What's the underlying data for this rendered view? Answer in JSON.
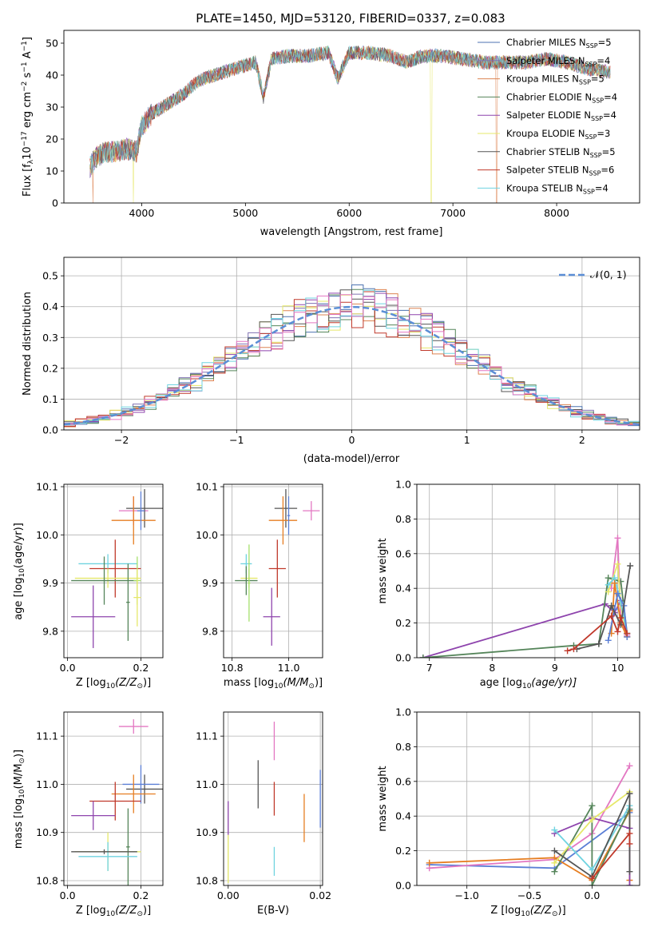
{
  "figure_title": "PLATE=1450, MJD=53120, FIBERID=0337, z=0.083",
  "colors": {
    "Chabrier MILES": "#4c72b0",
    "Salpeter MILES": "#8172b2",
    "Kroupa MILES": "#dd8452",
    "Chabrier ELODIE": "#55855a",
    "Salpeter ELODIE": "#8e44ad",
    "Kroupa ELODIE": "#e6e86a",
    "Chabrier STELIB": "#555555",
    "Salpeter STELIB": "#c0392b",
    "Kroupa STELIB": "#6fd3e0",
    "pink": "#e377c2",
    "orange": "#e67e22",
    "blue": "#5b7fd6",
    "normal_curve": "#5b8ed6"
  },
  "chart_data": [
    {
      "id": "spectrum",
      "type": "line",
      "xlabel": "wavelength [Angstrom, rest frame]",
      "ylabel": "Flux [f",
      "ylabel_sub": "λ",
      "ylabel_rest": "10",
      "ylabel_sup1": "−17",
      "ylabel_tail": " erg cm",
      "ylabel_sup2": "−2",
      "ylabel_tail2": " s",
      "ylabel_sup3": "−1",
      "ylabel_tail3": " A",
      "ylabel_sup4": "−1",
      "ylabel_end": "]",
      "xlim": [
        3250,
        8800
      ],
      "ylim": [
        0,
        54
      ],
      "xticks": [
        "4000",
        "5000",
        "6000",
        "7000",
        "8000"
      ],
      "xtick_values": [
        4000,
        5000,
        6000,
        7000,
        8000
      ],
      "yticks": [
        "0",
        "10",
        "20",
        "30",
        "40",
        "50"
      ],
      "ytick_values": [
        0,
        10,
        20,
        30,
        40,
        50
      ],
      "legend_position": "top-right",
      "legend": [
        {
          "name": "Chabrier MILES",
          "nssp": "5",
          "color": "#4c72b0"
        },
        {
          "name": "Salpeter MILES",
          "nssp": "4",
          "color": "#8172b2"
        },
        {
          "name": "Kroupa MILES",
          "nssp": "5",
          "color": "#dd8452"
        },
        {
          "name": "Chabrier ELODIE",
          "nssp": "4",
          "color": "#55855a"
        },
        {
          "name": "Salpeter ELODIE",
          "nssp": "4",
          "color": "#8e44ad"
        },
        {
          "name": "Kroupa ELODIE",
          "nssp": "3",
          "color": "#e6e86a"
        },
        {
          "name": "Chabrier STELIB",
          "nssp": "5",
          "color": "#555555"
        },
        {
          "name": "Salpeter STELIB",
          "nssp": "6",
          "color": "#c0392b"
        },
        {
          "name": "Kroupa STELIB",
          "nssp": "4",
          "color": "#6fd3e0"
        }
      ],
      "legend_prefix": "N",
      "legend_sub": "SSP",
      "spectrum_knots": {
        "x": [
          3500,
          3550,
          3650,
          3750,
          3850,
          3950,
          4000,
          4100,
          4200,
          4300,
          4400,
          4500,
          4600,
          4700,
          4800,
          4900,
          5000,
          5100,
          5175,
          5250,
          5400,
          5600,
          5800,
          5890,
          6000,
          6200,
          6400,
          6560,
          6700,
          6900,
          7100,
          7300,
          7500,
          7700,
          7900,
          8100,
          8300,
          8500
        ],
        "y": [
          11,
          14,
          16,
          16,
          17,
          16,
          24,
          28,
          30,
          32,
          34,
          37,
          39,
          40,
          41,
          42,
          43,
          44,
          33,
          45,
          46,
          46,
          47,
          39,
          47,
          47,
          46,
          44,
          46,
          46,
          45,
          44,
          44,
          44,
          45,
          44,
          42,
          41
        ]
      },
      "drops": [
        {
          "series": "Kroupa ELODIE",
          "x": 3920
        },
        {
          "series": "Kroupa ELODIE",
          "x": 6790
        },
        {
          "series": "Kroupa MILES",
          "x": 3530
        },
        {
          "series": "Kroupa MILES",
          "x": 7420
        }
      ]
    },
    {
      "id": "residual-hist",
      "type": "line",
      "xlabel": "(data-model)/error",
      "ylabel": "Normed distribution",
      "xlim": [
        -2.5,
        2.5
      ],
      "ylim": [
        0,
        0.56
      ],
      "xticks": [
        "−2",
        "−1",
        "0",
        "1",
        "2"
      ],
      "xtick_values": [
        -2,
        -1,
        0,
        1,
        2
      ],
      "yticks": [
        "0.0",
        "0.1",
        "0.2",
        "0.3",
        "0.4",
        "0.5"
      ],
      "ytick_values": [
        0,
        0.1,
        0.2,
        0.3,
        0.4,
        0.5
      ],
      "grid": true,
      "legend_position": "top-right",
      "legend_label": "𝒩(0, 1)",
      "bin_width": 0.1
    },
    {
      "id": "age-vs-Z",
      "type": "scatter",
      "xlabel": "Z [log",
      "xlabel_sub": "10",
      "xlabel_rest": "(Z/Z",
      "xlabel_sub2": "⊙",
      "xlabel_end": ")]",
      "ylabel": "age  [log",
      "ylabel_sub": "10",
      "ylabel_rest": "(age/yr)]",
      "xlim": [
        -0.01,
        0.26
      ],
      "ylim": [
        9.745,
        10.105
      ],
      "xticks": [
        "0.0",
        "0.2"
      ],
      "xtick_values": [
        0.0,
        0.2
      ],
      "yticks": [
        "9.8",
        "9.9",
        "10.0",
        "10.1"
      ],
      "ytick_values": [
        9.8,
        9.9,
        10.0,
        10.1
      ],
      "grid": true,
      "crosses": [
        {
          "color": "#e377c2",
          "x": 0.18,
          "xerr": 0.04,
          "y": 10.05,
          "yerr": 0.03
        },
        {
          "color": "#555555",
          "x": 0.21,
          "xerr": 0.05,
          "y": 10.055,
          "yerr": 0.04
        },
        {
          "color": "#e67e22",
          "x": 0.18,
          "xerr": 0.06,
          "y": 10.03,
          "yerr": 0.05
        },
        {
          "color": "#5b7fd6",
          "x": 0.2,
          "xerr": 0.01,
          "y": 10.05,
          "yerr": 0.04
        },
        {
          "color": "#6fd3e0",
          "x": 0.11,
          "xerr": 0.08,
          "y": 9.94,
          "yerr": 0.02
        },
        {
          "color": "#c0392b",
          "x": 0.13,
          "xerr": 0.07,
          "y": 9.93,
          "yerr": 0.06
        },
        {
          "color": "#e6e86a",
          "x": 0.11,
          "xerr": 0.09,
          "y": 9.91,
          "yerr": 0.02
        },
        {
          "color": "#55855a",
          "x": 0.1,
          "xerr": 0.09,
          "y": 9.905,
          "yerr": 0.05
        },
        {
          "color": "#a5e06b",
          "x": 0.19,
          "xerr": 0.01,
          "y": 9.905,
          "yerr": 0.05
        },
        {
          "color": "#e6e86a",
          "x": 0.19,
          "xerr": 0.01,
          "y": 9.87,
          "yerr": 0.06
        },
        {
          "color": "#8e44ad",
          "x": 0.07,
          "xerr": 0.06,
          "y": 9.83,
          "yerr": 0.065
        },
        {
          "color": "#55855a",
          "x": 0.165,
          "xerr": 0.005,
          "y": 9.86,
          "yerr": 0.08
        }
      ]
    },
    {
      "id": "age-vs-mass",
      "type": "scatter",
      "xlabel": "mass [log",
      "xlabel_sub": "10",
      "xlabel_rest": "(M/M",
      "xlabel_sub2": "⊙",
      "xlabel_end": ")]",
      "xlim": [
        10.77,
        11.12
      ],
      "ylim": [
        9.745,
        10.105
      ],
      "xticks": [
        "10.8",
        "11.0"
      ],
      "xtick_values": [
        10.8,
        11.0
      ],
      "yticks": [
        "9.8",
        "9.9",
        "10.0",
        "10.1"
      ],
      "ytick_values": [
        9.8,
        9.9,
        10.0,
        10.1
      ],
      "grid": true,
      "crosses": [
        {
          "color": "#e377c2",
          "x": 11.08,
          "xerr": 0.03,
          "y": 10.05,
          "yerr": 0.02
        },
        {
          "color": "#555555",
          "x": 10.99,
          "xerr": 0.04,
          "y": 10.055,
          "yerr": 0.04
        },
        {
          "color": "#e67e22",
          "x": 10.98,
          "xerr": 0.05,
          "y": 10.03,
          "yerr": 0.05
        },
        {
          "color": "#5b7fd6",
          "x": 11.0,
          "xerr": 0.005,
          "y": 10.04,
          "yerr": 0.04
        },
        {
          "color": "#6fd3e0",
          "x": 10.85,
          "xerr": 0.02,
          "y": 9.94,
          "yerr": 0.02
        },
        {
          "color": "#c0392b",
          "x": 10.96,
          "xerr": 0.03,
          "y": 9.93,
          "yerr": 0.06
        },
        {
          "color": "#e6e86a",
          "x": 10.86,
          "xerr": 0.03,
          "y": 9.91,
          "yerr": 0.02
        },
        {
          "color": "#55855a",
          "x": 10.85,
          "xerr": 0.04,
          "y": 9.905,
          "yerr": 0.03
        },
        {
          "color": "#a5e06b",
          "x": 10.86,
          "xerr": 0.005,
          "y": 9.9,
          "yerr": 0.08
        },
        {
          "color": "#8e44ad",
          "x": 10.94,
          "xerr": 0.03,
          "y": 9.83,
          "yerr": 0.06
        }
      ]
    },
    {
      "id": "weight-vs-age",
      "type": "line",
      "xlabel": "age  [log",
      "xlabel_sub": "10",
      "xlabel_rest": "(age/yr)]",
      "ylabel": "mass weight",
      "xlim": [
        6.8,
        10.35
      ],
      "ylim": [
        0,
        1.0
      ],
      "xticks": [
        "7",
        "8",
        "9",
        "10"
      ],
      "xtick_values": [
        7,
        8,
        9,
        10
      ],
      "yticks": [
        "0.0",
        "0.2",
        "0.4",
        "0.6",
        "0.8",
        "1.0"
      ],
      "ytick_values": [
        0,
        0.2,
        0.4,
        0.6,
        0.8,
        1.0
      ],
      "grid": true,
      "series": [
        {
          "color": "#8e44ad",
          "x": [
            6.9,
            9.8,
            9.95,
            10.05,
            10.15
          ],
          "y": [
            0.0,
            0.31,
            0.26,
            0.33,
            0.12
          ]
        },
        {
          "color": "#55855a",
          "x": [
            6.9,
            9.3,
            9.7,
            9.85,
            10.05,
            10.15
          ],
          "y": [
            0.0,
            0.07,
            0.08,
            0.46,
            0.44,
            0.14
          ]
        },
        {
          "color": "#e377c2",
          "x": [
            9.9,
            10.0,
            10.05,
            10.15
          ],
          "y": [
            0.4,
            0.69,
            0.2,
            0.13
          ]
        },
        {
          "color": "#e6e86a",
          "x": [
            9.85,
            10.0,
            10.05,
            10.15
          ],
          "y": [
            0.38,
            0.54,
            0.3,
            0.12
          ]
        },
        {
          "color": "#6fd3e0",
          "x": [
            9.85,
            9.95,
            10.05,
            10.15
          ],
          "y": [
            0.42,
            0.46,
            0.32,
            0.14
          ]
        },
        {
          "color": "#e67e22",
          "x": [
            9.9,
            9.95,
            10.05,
            10.15
          ],
          "y": [
            0.14,
            0.43,
            0.2,
            0.12
          ]
        },
        {
          "color": "#5b7fd6",
          "x": [
            9.85,
            9.95,
            10.0,
            10.1,
            10.15
          ],
          "y": [
            0.1,
            0.28,
            0.37,
            0.3,
            0.12
          ]
        },
        {
          "color": "#555555",
          "x": [
            9.35,
            9.7,
            9.9,
            10.05,
            10.2
          ],
          "y": [
            0.05,
            0.08,
            0.3,
            0.19,
            0.53
          ]
        },
        {
          "color": "#c0392b",
          "x": [
            9.2,
            9.3,
            9.9,
            10.0,
            10.05,
            10.15
          ],
          "y": [
            0.04,
            0.05,
            0.24,
            0.15,
            0.23,
            0.14
          ]
        }
      ]
    },
    {
      "id": "mass-vs-Z",
      "type": "scatter",
      "xlabel": "Z [log",
      "xlabel_sub": "10",
      "xlabel_rest": "(Z/Z",
      "xlabel_sub2": "⊙",
      "xlabel_end": ")]",
      "ylabel": "mass [log",
      "ylabel_sub": "10",
      "ylabel_rest": "(M/M",
      "ylabel_sub2": "⊙",
      "ylabel_end": ")]",
      "xlim": [
        -0.01,
        0.26
      ],
      "ylim": [
        10.79,
        11.15
      ],
      "xticks": [
        "0.0",
        "0.2"
      ],
      "xtick_values": [
        0.0,
        0.2
      ],
      "yticks": [
        "10.8",
        "10.9",
        "11.0",
        "11.1"
      ],
      "ytick_values": [
        10.8,
        10.9,
        11.0,
        11.1
      ],
      "grid": true,
      "crosses": [
        {
          "color": "#e377c2",
          "x": 0.18,
          "xerr": 0.04,
          "y": 11.12,
          "yerr": 0.015
        },
        {
          "color": "#555555",
          "x": 0.21,
          "xerr": 0.05,
          "y": 10.99,
          "yerr": 0.03
        },
        {
          "color": "#5b7fd6",
          "x": 0.2,
          "xerr": 0.05,
          "y": 11.0,
          "yerr": 0.04
        },
        {
          "color": "#e67e22",
          "x": 0.18,
          "xerr": 0.06,
          "y": 10.98,
          "yerr": 0.04
        },
        {
          "color": "#c0392b",
          "x": 0.13,
          "xerr": 0.07,
          "y": 10.965,
          "yerr": 0.04
        },
        {
          "color": "#8e44ad",
          "x": 0.07,
          "xerr": 0.06,
          "y": 10.935,
          "yerr": 0.03
        },
        {
          "color": "#55855a",
          "x": 0.165,
          "xerr": 0.005,
          "y": 10.87,
          "yerr": 0.08
        },
        {
          "color": "#e6e86a",
          "x": 0.11,
          "xerr": 0.09,
          "y": 10.86,
          "yerr": 0.04
        },
        {
          "color": "#6fd3e0",
          "x": 0.11,
          "xerr": 0.08,
          "y": 10.85,
          "yerr": 0.03
        },
        {
          "color": "#555555",
          "x": 0.1,
          "xerr": 0.09,
          "y": 10.86,
          "yerr": 0.005
        }
      ]
    },
    {
      "id": "mass-vs-EBV",
      "type": "scatter",
      "xlabel": "E(B-V)",
      "xlim": [
        -0.001,
        0.0205
      ],
      "ylim": [
        10.79,
        11.15
      ],
      "xticks": [
        "0.00",
        "0.02"
      ],
      "xtick_values": [
        0.0,
        0.02
      ],
      "yticks": [
        "10.8",
        "10.9",
        "11.0",
        "11.1"
      ],
      "ytick_values": [
        10.8,
        10.9,
        11.0,
        11.1
      ],
      "grid": true,
      "crosses": [
        {
          "color": "#e377c2",
          "x": 0.01,
          "y": 11.09,
          "yerr": 0.04
        },
        {
          "color": "#555555",
          "x": 0.0065,
          "y": 11.0,
          "yerr": 0.05
        },
        {
          "color": "#c0392b",
          "x": 0.01,
          "y": 10.97,
          "yerr": 0.035
        },
        {
          "color": "#8e44ad",
          "x": 0.0,
          "y": 10.93,
          "yerr": 0.035
        },
        {
          "color": "#e67e22",
          "x": 0.0165,
          "y": 10.93,
          "yerr": 0.05
        },
        {
          "color": "#5b7fd6",
          "x": 0.02,
          "y": 10.97,
          "yerr": 0.06
        },
        {
          "color": "#6fd3e0",
          "x": 0.01,
          "y": 10.84,
          "yerr": 0.03
        },
        {
          "color": "#e6e86a",
          "x": 0.0,
          "y": 10.845,
          "yerr": 0.05
        }
      ]
    },
    {
      "id": "weight-vs-Z",
      "type": "line",
      "xlabel": "Z [log",
      "xlabel_sub": "10",
      "xlabel_rest": "(Z/Z",
      "xlabel_sub2": "⊙",
      "xlabel_end": ")]",
      "ylabel": "mass weight",
      "xlim": [
        -1.4,
        0.38
      ],
      "ylim": [
        0,
        1.0
      ],
      "xticks": [
        "−1.0",
        "−0.5",
        "0.0"
      ],
      "xtick_values": [
        -1.0,
        -0.5,
        0.0
      ],
      "yticks": [
        "0.0",
        "0.2",
        "0.4",
        "0.6",
        "0.8",
        "1.0"
      ],
      "ytick_values": [
        0,
        0.2,
        0.4,
        0.6,
        0.8,
        1.0
      ],
      "grid": true,
      "series": [
        {
          "color": "#5b7fd6",
          "x": [
            -1.3,
            -0.3,
            0.3
          ],
          "y": [
            0.12,
            0.1,
            0.42
          ]
        },
        {
          "color": "#e377c2",
          "x": [
            -1.3,
            -0.3,
            0.0,
            0.3
          ],
          "y": [
            0.1,
            0.15,
            0.3,
            0.69
          ]
        },
        {
          "color": "#e67e22",
          "x": [
            -1.3,
            -0.3,
            0.0,
            0.3,
            0.3
          ],
          "y": [
            0.13,
            0.16,
            0.03,
            0.43,
            0.03
          ]
        },
        {
          "color": "#8e44ad",
          "x": [
            -0.3,
            0.0,
            0.3,
            0.3
          ],
          "y": [
            0.3,
            0.39,
            0.33,
            0.0
          ]
        },
        {
          "color": "#55855a",
          "x": [
            -0.3,
            0.0,
            0.0,
            0.3
          ],
          "y": [
            0.08,
            0.46,
            0.0,
            0.44
          ]
        },
        {
          "color": "#e6e86a",
          "x": [
            -0.3,
            0.0,
            0.3
          ],
          "y": [
            0.13,
            0.38,
            0.54
          ]
        },
        {
          "color": "#6fd3e0",
          "x": [
            -0.3,
            0.0,
            0.3
          ],
          "y": [
            0.32,
            0.09,
            0.46
          ]
        },
        {
          "color": "#555555",
          "x": [
            -0.3,
            0.0,
            0.3,
            0.3
          ],
          "y": [
            0.2,
            0.05,
            0.53,
            0.08
          ]
        },
        {
          "color": "#c0392b",
          "x": [
            0.0,
            0.3,
            0.3
          ],
          "y": [
            0.04,
            0.3,
            0.24
          ]
        }
      ]
    }
  ]
}
